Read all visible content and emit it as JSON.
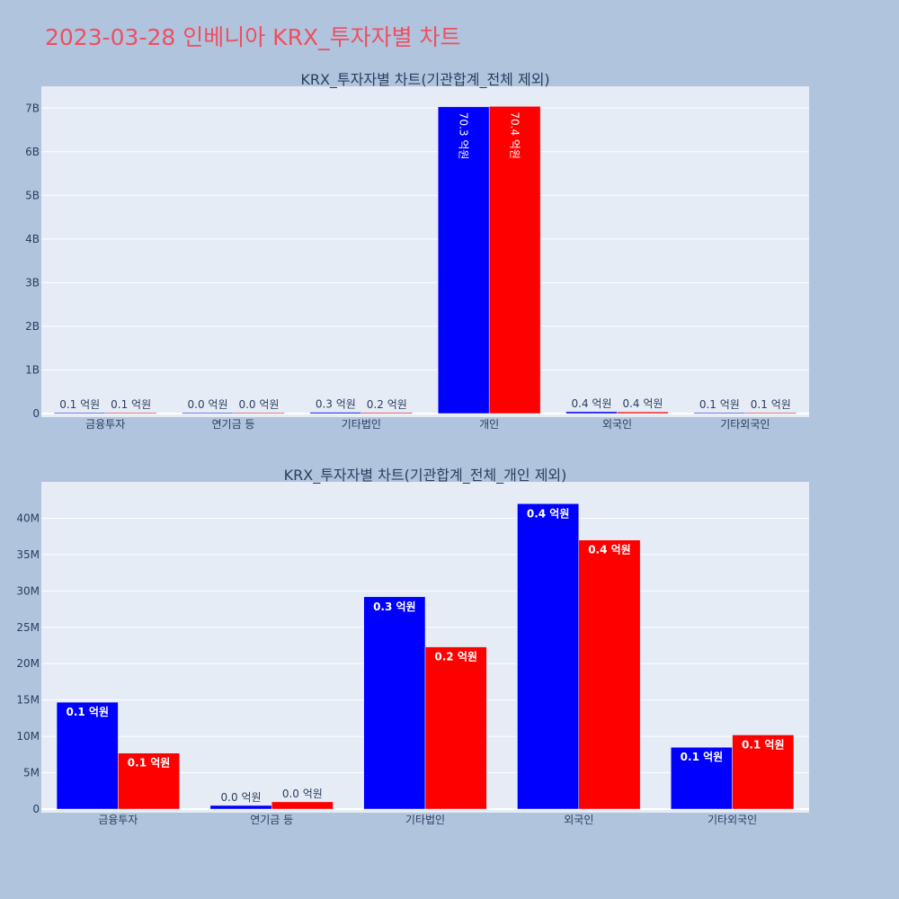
{
  "page": {
    "title": "2023-03-28 인베니아 KRX_투자자별 차트"
  },
  "colors": {
    "background": "#b0c4de",
    "plot_bg": "#e5ecf6",
    "series_a": "#0000ff",
    "series_b": "#ff0000",
    "title": "#ef4f5f",
    "text": "#2a3f5f"
  },
  "chart_data": [
    {
      "type": "bar",
      "title": "KRX_투자자별 차트(기관합계_전체 제외)",
      "categories": [
        "금융투자",
        "연기금 등",
        "기타법인",
        "개인",
        "외국인",
        "기타외국인"
      ],
      "ylim": [
        0,
        7500000000
      ],
      "yticks": [
        0,
        1000000000,
        2000000000,
        3000000000,
        4000000000,
        5000000000,
        6000000000,
        7000000000
      ],
      "ytick_labels": [
        "0",
        "1B",
        "2B",
        "3B",
        "4B",
        "5B",
        "6B",
        "7B"
      ],
      "grid": true,
      "series": [
        {
          "color": "#0000ff",
          "values": [
            14700000,
            500000,
            29200000,
            7030000000,
            42000000,
            8500000
          ],
          "labels": [
            "0.1 억원",
            "0.0 억원",
            "0.3 억원",
            "70.3 억원",
            "0.4 억원",
            "0.1 억원"
          ]
        },
        {
          "color": "#ff0000",
          "values": [
            7700000,
            1000000,
            22300000,
            7040000000,
            37000000,
            10200000
          ],
          "labels": [
            "0.1 억원",
            "0.0 억원",
            "0.2 억원",
            "70.4 억원",
            "0.4 억원",
            "0.1 억원"
          ]
        }
      ]
    },
    {
      "type": "bar",
      "title": "KRX_투자자별 차트(기관합계_전체_개인 제외)",
      "categories": [
        "금융투자",
        "연기금 등",
        "기타법인",
        "외국인",
        "기타외국인"
      ],
      "ylim": [
        0,
        45000000
      ],
      "yticks": [
        0,
        5000000,
        10000000,
        15000000,
        20000000,
        25000000,
        30000000,
        35000000,
        40000000
      ],
      "ytick_labels": [
        "0",
        "5M",
        "10M",
        "15M",
        "20M",
        "25M",
        "30M",
        "35M",
        "40M"
      ],
      "grid": true,
      "series": [
        {
          "color": "#0000ff",
          "values": [
            14700000,
            500000,
            29200000,
            42000000,
            8500000
          ],
          "labels": [
            "0.1 억원",
            "0.0 억원",
            "0.3 억원",
            "0.4 억원",
            "0.1 억원"
          ]
        },
        {
          "color": "#ff0000",
          "values": [
            7700000,
            1000000,
            22300000,
            37000000,
            10200000
          ],
          "labels": [
            "0.1 억원",
            "0.0 억원",
            "0.2 억원",
            "0.4 억원",
            "0.1 억원"
          ]
        }
      ]
    }
  ]
}
